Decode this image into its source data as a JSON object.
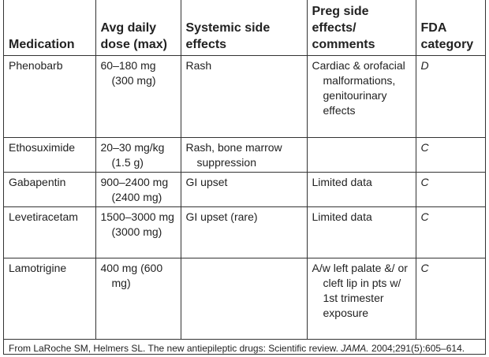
{
  "table": {
    "header": [
      "Medication",
      "Avg daily dose (max)",
      "Systemic side effects",
      "Preg side effects/ comments",
      "FDA category"
    ],
    "rows": [
      [
        "Phenobarb",
        "60–180 mg (300 mg)",
        "Rash",
        "Cardiac & orofacial malformations, genitourinary effects",
        "D"
      ],
      [
        "Ethosuximide",
        "20–30 mg/kg (1.5 g)",
        "Rash, bone marrow suppression",
        "",
        "C"
      ],
      [
        "Gabapentin",
        "900–2400 mg (2400 mg)",
        "GI upset",
        "Limited data",
        "C"
      ],
      [
        "Levetiracetam",
        "1500–3000 mg (3000 mg)",
        "GI upset (rare)",
        "Limited data",
        "C"
      ],
      [
        "Lamotrigine",
        "400 mg (600 mg)",
        "",
        "A/w left palate &/ or cleft lip in pts w/ 1st trimester exposure",
        "C"
      ]
    ]
  },
  "footnote": {
    "before": "From LaRoche SM, Helmers SL. The new antiepileptic drugs: Scientific review. ",
    "journal": "JAMA.",
    "after": " 2004;291(5):605–614."
  }
}
